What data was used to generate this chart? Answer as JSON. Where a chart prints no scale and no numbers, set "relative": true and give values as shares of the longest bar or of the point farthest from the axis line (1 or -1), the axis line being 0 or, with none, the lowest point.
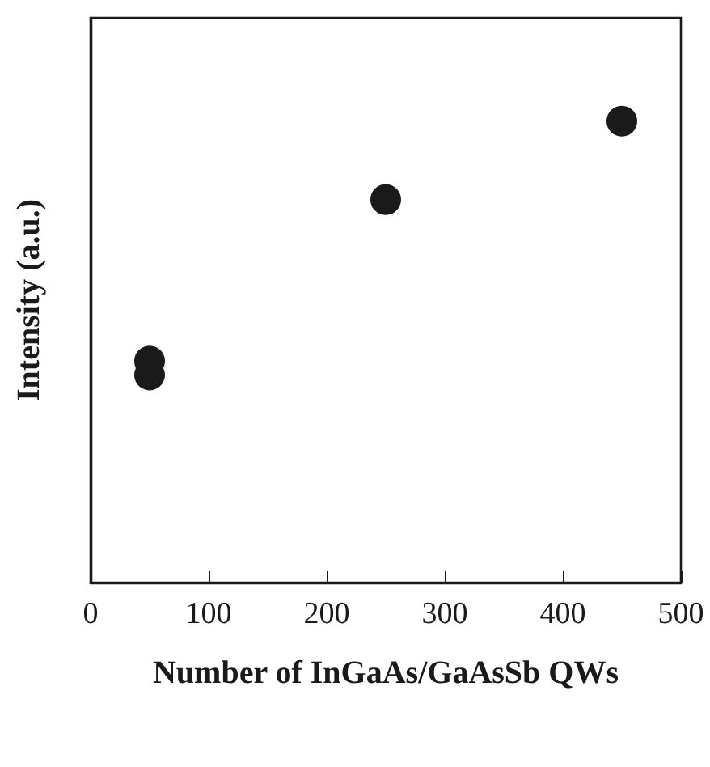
{
  "chart_data": {
    "type": "scatter",
    "relative": true,
    "xlabel": "Number of InGaAs/GaAsSb QWs",
    "ylabel": "Intensity (a.u.)",
    "x": [
      50,
      50,
      250,
      450
    ],
    "series": [
      {
        "color": "#1a1a1a",
        "values": [
          0.48,
          0.45,
          0.83,
          1
        ]
      }
    ],
    "xlim": [
      0,
      500
    ],
    "xticks": [
      0,
      100,
      200,
      300,
      400,
      500
    ],
    "marker": "circle",
    "grid": false
  }
}
